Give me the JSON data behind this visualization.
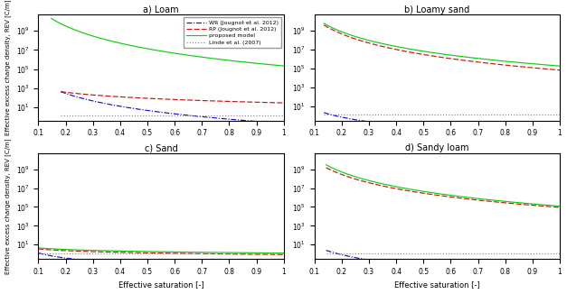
{
  "titles": [
    "a) Loam",
    "b) Loamy sand",
    "c) Sand",
    "d) Sandy loam"
  ],
  "legend_labels": [
    "WR (Jougnot et al. 2012)",
    "RP (Jougnot et al. 2012)",
    "proposed model",
    "Linde et al. (2007)"
  ],
  "xlabel": "Effective saturation [-]",
  "ylabel": "Effective excess charge density, REV [C/m]",
  "colors": {
    "WR": "#1111CC",
    "RP": "#CC1111",
    "proposed": "#11CC11",
    "linde": "#888888"
  },
  "subplots": [
    {
      "name": "loam",
      "Se_min": 0.182,
      "prop_Se_min": 0.148,
      "ylim": [
        0.4,
        50000000000.0
      ],
      "WR_A": 420.0,
      "WR_exp": 4.5,
      "RP_A": 420.0,
      "RP_exp": 1.6,
      "prop_A": 20000000000.0,
      "prop_exp": 6.0,
      "linde_val": 1.4
    },
    {
      "name": "loamy_sand",
      "Se_min": 0.135,
      "prop_Se_min": 0.135,
      "ylim": [
        0.3,
        50000000000.0
      ],
      "WR_A": 2.0,
      "WR_exp": 2.8,
      "RP_A": 4000000000.0,
      "RP_exp": 5.5,
      "prop_A": 6000000000.0,
      "prop_exp": 5.2,
      "linde_val": 1.15
    },
    {
      "name": "sand",
      "Se_min": 0.1,
      "prop_Se_min": 0.1,
      "ylim": [
        0.3,
        50000000000.0
      ],
      "WR_A": 1.3,
      "WR_exp": 1.8,
      "RP_A": 3.5,
      "RP_exp": 0.6,
      "prop_A": 4.5,
      "prop_exp": 0.55,
      "linde_val": 1.05
    },
    {
      "name": "sandy_loam",
      "Se_min": 0.143,
      "prop_Se_min": 0.143,
      "ylim": [
        0.3,
        50000000000.0
      ],
      "WR_A": 2.5,
      "WR_exp": 3.2,
      "RP_A": 1500000000.0,
      "RP_exp": 5.0,
      "prop_A": 3000000000.0,
      "prop_exp": 5.2,
      "linde_val": 1.25
    }
  ]
}
